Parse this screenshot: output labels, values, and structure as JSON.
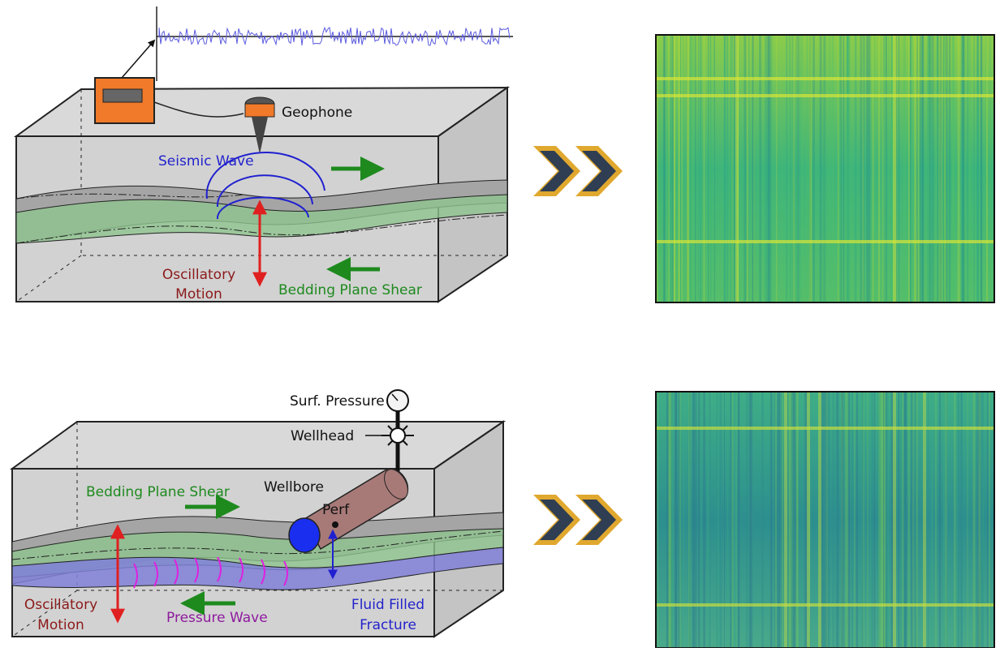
{
  "top": {
    "geophone": "Geophone",
    "seismic_wave": "Seismic Wave",
    "oscillatory_motion": [
      "Oscillatory",
      "Motion"
    ],
    "bedding_plane_shear": "Bedding Plane Shear"
  },
  "bottom": {
    "surf_pressure": "Surf. Pressure",
    "wellhead": "Wellhead",
    "bedding_plane_shear": "Bedding Plane Shear",
    "wellbore": "Wellbore",
    "perf": "Perf",
    "oscillatory_motion": [
      "Oscillatory",
      "Motion"
    ],
    "pressure_wave": "Pressure Wave",
    "fluid_filled_fracture": [
      "Fluid Filled",
      "Fracture"
    ]
  }
}
